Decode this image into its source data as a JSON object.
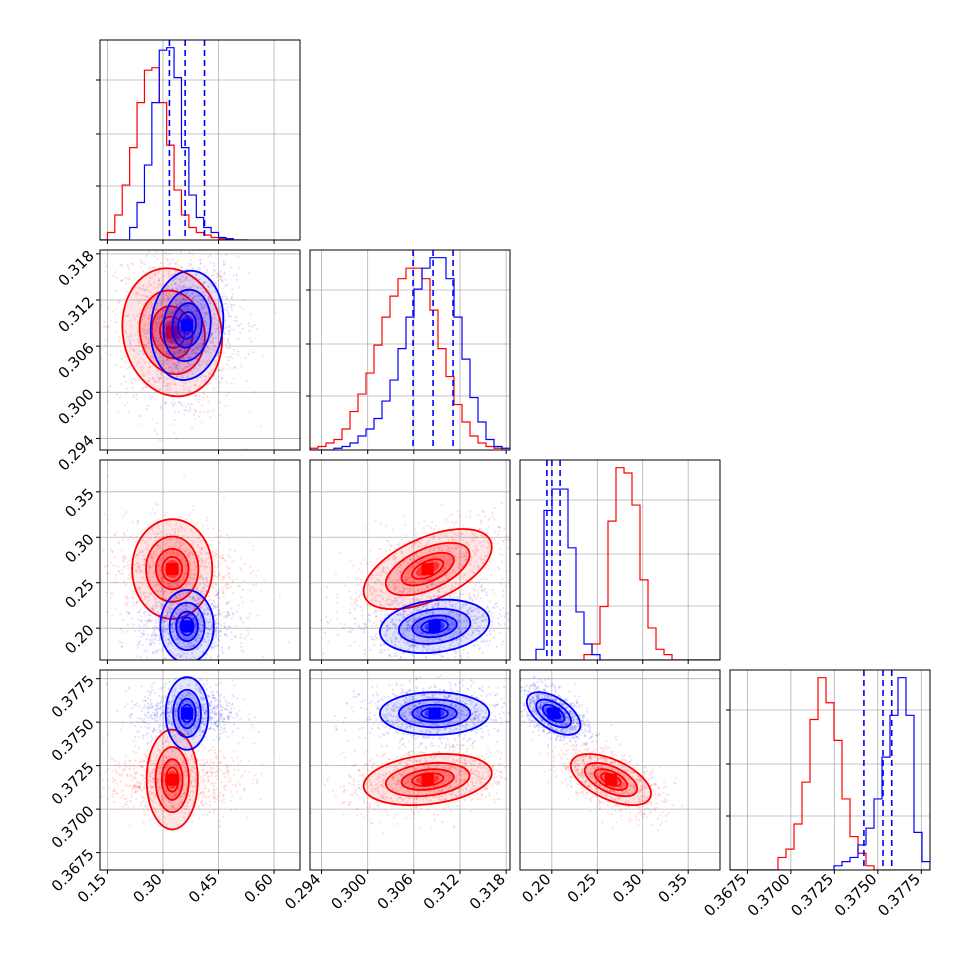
{
  "chart_data": {
    "type": "corner",
    "colors": {
      "run_a": "#ff0000",
      "run_b": "#0000ff",
      "grid": "#b0b0b0",
      "frame": "#000000"
    },
    "grid": true,
    "parameters": [
      {
        "range": [
          0.13,
          0.67
        ],
        "ticks": [
          "0.15",
          "0.30",
          "0.45",
          "0.60"
        ],
        "tick_values": [
          0.15,
          0.3,
          0.45,
          0.6
        ]
      },
      {
        "range": [
          0.2925,
          0.3185
        ],
        "ticks": [
          "0.294",
          "0.300",
          "0.306",
          "0.312",
          "0.318"
        ],
        "tick_values": [
          0.294,
          0.3,
          0.306,
          0.312,
          0.318
        ]
      },
      {
        "range": [
          0.165,
          0.385
        ],
        "ticks": [
          "0.20",
          "0.25",
          "0.30",
          "0.35"
        ],
        "tick_values": [
          0.2,
          0.25,
          0.3,
          0.35
        ]
      },
      {
        "range": [
          0.3665,
          0.378
        ],
        "ticks": [
          "0.3675",
          "0.3700",
          "0.3725",
          "0.3750",
          "0.3775"
        ],
        "tick_values": [
          0.3675,
          0.37,
          0.3725,
          0.375,
          0.3775
        ]
      }
    ],
    "histograms": [
      {
        "param": 0,
        "bin_start": 0.13,
        "bin_width": 0.02,
        "red": [
          0,
          0.3,
          1.0,
          2.2,
          3.7,
          5.5,
          6.8,
          6.9,
          5.5,
          3.8,
          2.0,
          1.0,
          0.5,
          0.3,
          0.2,
          0.1,
          0.05,
          0.02,
          0,
          0
        ],
        "blue": [
          0,
          0,
          0,
          0,
          0.5,
          1.5,
          3.0,
          5.5,
          7.6,
          7.7,
          6.5,
          3.7,
          1.8,
          0.9,
          0.5,
          0.3,
          0.1,
          0.05,
          0,
          0
        ],
        "quantiles": [
          0.3174,
          0.3599,
          0.4122
        ]
      },
      {
        "param": 1,
        "bin_start": 0.2925,
        "bin_width": 0.00104,
        "red": [
          0.05,
          0.1,
          0.2,
          0.3,
          0.6,
          1.1,
          1.6,
          2.2,
          3.0,
          3.8,
          4.4,
          4.9,
          5.2,
          5.2,
          4.9,
          4.0,
          2.9,
          2.1,
          1.3,
          0.8,
          0.4,
          0.2,
          0.1,
          0.05,
          0
        ],
        "blue": [
          0,
          0,
          0,
          0.05,
          0.1,
          0.2,
          0.4,
          0.6,
          0.9,
          1.4,
          2.0,
          2.9,
          3.8,
          4.6,
          5.2,
          5.5,
          5.5,
          4.9,
          3.8,
          2.6,
          1.5,
          0.8,
          0.3,
          0.1,
          0.05
        ],
        "quantiles": [
          0.3059,
          0.3085,
          0.3111
        ]
      },
      {
        "param": 2,
        "bin_start": 0.165,
        "bin_width": 0.0088,
        "red": [
          0,
          0,
          0,
          0,
          0,
          0,
          0,
          0,
          0.1,
          0.3,
          1.0,
          2.6,
          3.6,
          3.5,
          2.9,
          1.5,
          0.6,
          0.2,
          0.1,
          0,
          0,
          0,
          0,
          0,
          0
        ],
        "blue": [
          0,
          0,
          0.2,
          2.8,
          3.2,
          3.2,
          2.1,
          0.9,
          0.3,
          0.1,
          0,
          0,
          0,
          0,
          0,
          0,
          0,
          0,
          0,
          0,
          0,
          0,
          0,
          0,
          0
        ],
        "quantiles": [
          0.1946,
          0.2001,
          0.2091
        ]
      },
      {
        "param": 3,
        "bin_start": 0.3665,
        "bin_width": 0.00046,
        "red": [
          0,
          0,
          0,
          0,
          0,
          0,
          0.3,
          0.5,
          1.1,
          2.1,
          3.6,
          4.6,
          4.0,
          3.1,
          1.7,
          0.8,
          0.4,
          0.1,
          0,
          0,
          0,
          0,
          0,
          0,
          0
        ],
        "blue": [
          0,
          0,
          0,
          0,
          0,
          0,
          0,
          0,
          0,
          0,
          0,
          0,
          0,
          0.1,
          0.2,
          0.3,
          0.6,
          1.0,
          1.7,
          2.7,
          3.7,
          4.6,
          3.7,
          0.9,
          0.2
        ],
        "quantiles": [
          0.3742,
          0.3753,
          0.3758
        ]
      }
    ],
    "distributions": {
      "red": {
        "mean": [
          0.325,
          0.3078,
          0.265,
          0.3717
        ],
        "sd": [
          0.055,
          0.0034,
          0.018,
          0.0006
        ],
        "corr": [
          [
            1,
            -0.1,
            0,
            0
          ],
          [
            -0.1,
            1,
            0.55,
            0.25
          ],
          [
            0,
            0.55,
            1,
            -0.55
          ],
          [
            0,
            0.25,
            -0.55,
            1
          ]
        ]
      },
      "blue": {
        "mean": [
          0.365,
          0.3087,
          0.202,
          0.3755
        ],
        "sd": [
          0.04,
          0.0029,
          0.012,
          0.0005
        ],
        "corr": [
          [
            1,
            0.1,
            0,
            0
          ],
          [
            0.1,
            1,
            0.2,
            0
          ],
          [
            0,
            0.2,
            1,
            -0.55
          ],
          [
            0,
            0,
            -0.55,
            1
          ]
        ]
      }
    }
  }
}
